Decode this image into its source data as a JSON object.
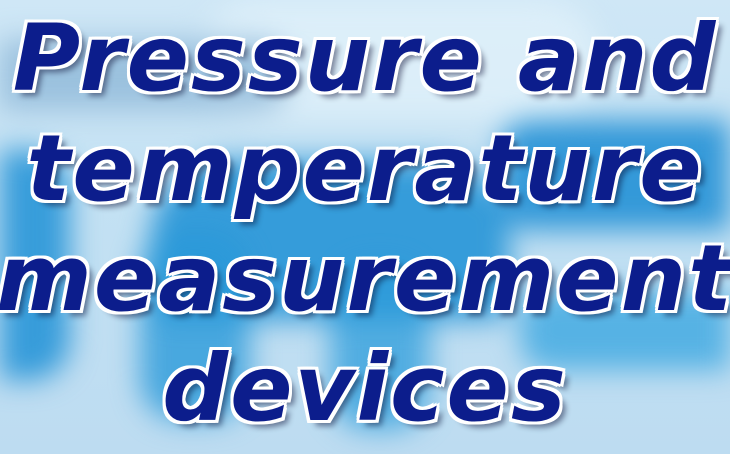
{
  "title": {
    "lines": [
      "Pressure and",
      "temperature",
      "measurement",
      "devices"
    ]
  },
  "colors": {
    "text": "#0c1d8c",
    "outline": "#ffffff",
    "background": "#c3e1f3",
    "accent": "#1c8fd5"
  }
}
